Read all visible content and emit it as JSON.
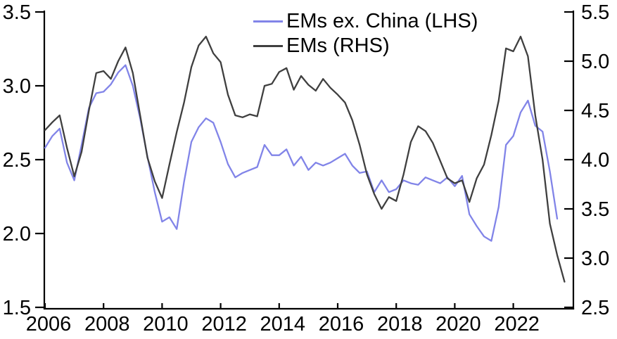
{
  "chart_data": {
    "type": "line",
    "title": "",
    "grid": false,
    "legend_position": "top-center",
    "x_axis": {
      "tick_labels": [
        "2006",
        "2008",
        "2010",
        "2012",
        "2014",
        "2016",
        "2018",
        "2020",
        "2022"
      ],
      "tick_years": [
        2006,
        2008,
        2010,
        2012,
        2014,
        2016,
        2018,
        2020,
        2022
      ],
      "range": [
        2005.95,
        2024.05
      ]
    },
    "left_axis": {
      "tick_labels": [
        "3.5",
        "3.0",
        "2.5",
        "2.0",
        "1.5"
      ],
      "tick_values": [
        3.5,
        3.0,
        2.5,
        2.0,
        1.5
      ],
      "range": [
        1.5,
        3.5
      ]
    },
    "right_axis": {
      "tick_labels": [
        "5.5",
        "5.0",
        "4.5",
        "4.0",
        "3.5",
        "3.0",
        "2.5"
      ],
      "tick_values": [
        5.5,
        5.0,
        4.5,
        4.0,
        3.5,
        3.0,
        2.5
      ],
      "range": [
        2.5,
        5.5
      ]
    },
    "series": [
      {
        "name": "EMs ex. China (LHS)",
        "axis": "left",
        "color": "#8184e8",
        "x": [
          2006.0,
          2006.25,
          2006.5,
          2006.75,
          2007.0,
          2007.25,
          2007.5,
          2007.75,
          2008.0,
          2008.25,
          2008.5,
          2008.75,
          2009.0,
          2009.25,
          2009.5,
          2009.75,
          2010.0,
          2010.25,
          2010.5,
          2010.75,
          2011.0,
          2011.25,
          2011.5,
          2011.75,
          2012.0,
          2012.25,
          2012.5,
          2012.75,
          2013.0,
          2013.25,
          2013.5,
          2013.75,
          2014.0,
          2014.25,
          2014.5,
          2014.75,
          2015.0,
          2015.25,
          2015.5,
          2015.75,
          2016.0,
          2016.25,
          2016.5,
          2016.75,
          2017.0,
          2017.25,
          2017.5,
          2017.75,
          2018.0,
          2018.25,
          2018.5,
          2018.75,
          2019.0,
          2019.25,
          2019.5,
          2019.75,
          2020.0,
          2020.25,
          2020.5,
          2020.75,
          2021.0,
          2021.25,
          2021.5,
          2021.75,
          2022.0,
          2022.25,
          2022.5,
          2022.75,
          2023.0,
          2023.25,
          2023.5
        ],
        "values": [
          2.58,
          2.66,
          2.71,
          2.48,
          2.36,
          2.6,
          2.85,
          2.95,
          2.96,
          3.01,
          3.09,
          3.14,
          3.0,
          2.78,
          2.52,
          2.28,
          2.08,
          2.11,
          2.03,
          2.35,
          2.62,
          2.72,
          2.78,
          2.75,
          2.62,
          2.47,
          2.38,
          2.41,
          2.43,
          2.45,
          2.6,
          2.53,
          2.53,
          2.57,
          2.46,
          2.52,
          2.43,
          2.48,
          2.46,
          2.48,
          2.51,
          2.54,
          2.46,
          2.41,
          2.42,
          2.28,
          2.36,
          2.28,
          2.3,
          2.36,
          2.34,
          2.33,
          2.38,
          2.36,
          2.34,
          2.38,
          2.32,
          2.39,
          2.13,
          2.05,
          1.98,
          1.95,
          2.18,
          2.6,
          2.66,
          2.82,
          2.9,
          2.73,
          2.69,
          2.42,
          2.1
        ]
      },
      {
        "name": "EMs (RHS)",
        "axis": "right",
        "color": "#3f3f3f",
        "x": [
          2006.0,
          2006.25,
          2006.5,
          2006.75,
          2007.0,
          2007.25,
          2007.5,
          2007.75,
          2008.0,
          2008.25,
          2008.5,
          2008.75,
          2009.0,
          2009.25,
          2009.5,
          2009.75,
          2010.0,
          2010.25,
          2010.5,
          2010.75,
          2011.0,
          2011.25,
          2011.5,
          2011.75,
          2012.0,
          2012.25,
          2012.5,
          2012.75,
          2013.0,
          2013.25,
          2013.5,
          2013.75,
          2014.0,
          2014.25,
          2014.5,
          2014.75,
          2015.0,
          2015.25,
          2015.5,
          2015.75,
          2016.0,
          2016.25,
          2016.5,
          2016.75,
          2017.0,
          2017.25,
          2017.5,
          2017.75,
          2018.0,
          2018.25,
          2018.5,
          2018.75,
          2019.0,
          2019.25,
          2019.5,
          2019.75,
          2020.0,
          2020.25,
          2020.5,
          2020.75,
          2021.0,
          2021.25,
          2021.5,
          2021.75,
          2022.0,
          2022.25,
          2022.5,
          2022.75,
          2023.0,
          2023.25,
          2023.5,
          2023.75
        ],
        "values": [
          4.3,
          4.38,
          4.45,
          4.12,
          3.83,
          4.08,
          4.5,
          4.88,
          4.9,
          4.82,
          5.0,
          5.14,
          4.88,
          4.45,
          4.02,
          3.78,
          3.61,
          3.95,
          4.28,
          4.58,
          4.94,
          5.16,
          5.25,
          5.08,
          4.99,
          4.66,
          4.45,
          4.43,
          4.46,
          4.44,
          4.75,
          4.77,
          4.89,
          4.93,
          4.71,
          4.85,
          4.76,
          4.7,
          4.82,
          4.73,
          4.66,
          4.58,
          4.4,
          4.15,
          3.85,
          3.65,
          3.5,
          3.62,
          3.58,
          3.85,
          4.18,
          4.34,
          4.29,
          4.17,
          3.99,
          3.81,
          3.76,
          3.79,
          3.57,
          3.81,
          3.95,
          4.25,
          4.6,
          5.13,
          5.1,
          5.25,
          5.05,
          4.45,
          4.0,
          3.35,
          3.03,
          2.76
        ]
      }
    ]
  }
}
